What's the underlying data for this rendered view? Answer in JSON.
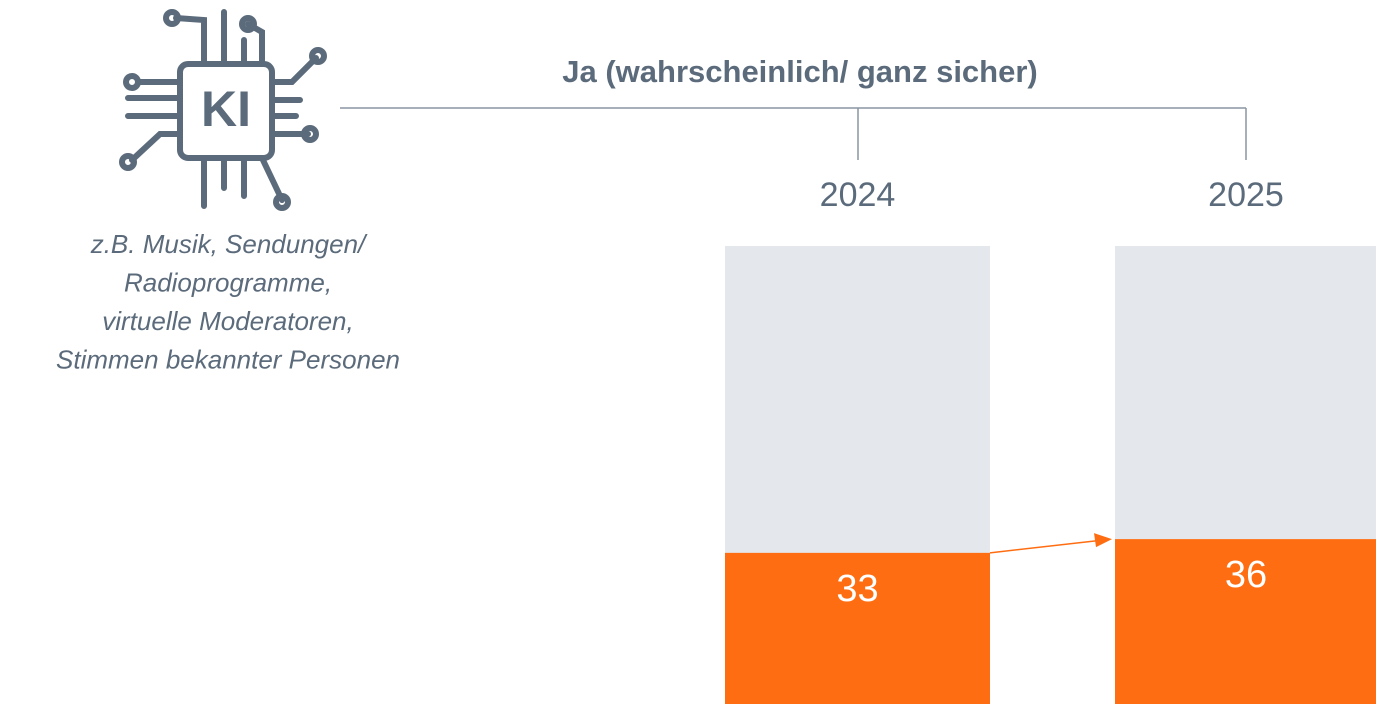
{
  "chart_data": {
    "type": "bar",
    "title": "Ja (wahrscheinlich/ ganz sicher)",
    "icon_label": "KI",
    "annotation": [
      "z.B. Musik, Sendungen/",
      "Radioprogramme,",
      "virtuelle Moderatoren,",
      "Stimmen bekannter Personen"
    ],
    "categories": [
      "2024",
      "2025"
    ],
    "values": [
      33,
      36
    ],
    "color": "#ff6d12",
    "track_color": "#e4e7eb",
    "ylim": [
      0,
      100
    ]
  }
}
